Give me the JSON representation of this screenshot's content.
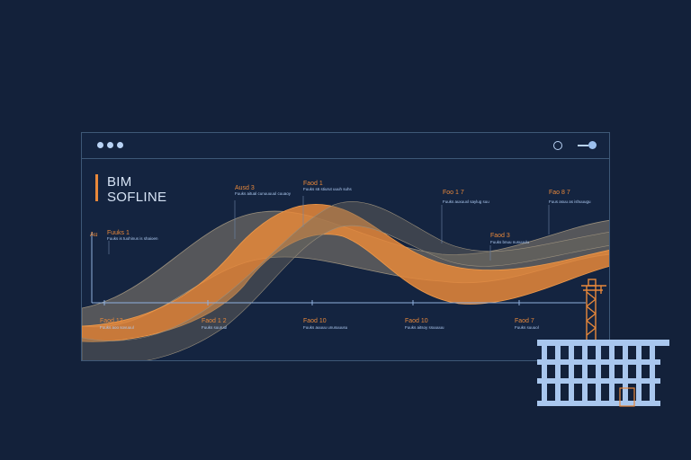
{
  "window": {
    "title_line1": "BIM",
    "title_line2": "SOFLINE",
    "controls": [
      "clock-icon",
      "minimize-icon",
      "dot-icon"
    ]
  },
  "chart_data": {
    "type": "area",
    "axis_label": "Au",
    "series": [
      {
        "color": "#e8883a"
      },
      {
        "color": "#8a8070"
      }
    ],
    "upper_labels": [
      {
        "title": "Fuuks 1",
        "caption": "Fuuks is tuohinus is shaioen"
      },
      {
        "title": "Ausd 3",
        "caption": "Fuuks aitual cunuuuuul cuuaoy"
      },
      {
        "title": "Faod 1",
        "caption": "Fuuks s6 stiurut uuuh suhs"
      },
      {
        "title": "Foo 1 7",
        "caption": "Fuuks auxuuxl saylug suu"
      },
      {
        "title": "Faod 3",
        "caption": "Fuuks bnuu nusuuulu"
      },
      {
        "title": "Fao 8 7",
        "caption": "Fuus asuu as ishuuugu"
      }
    ],
    "lower_labels": [
      {
        "title": "Faod 13",
        "caption": "Fuuks aoo sovuuul"
      },
      {
        "title": "Faod 1 2",
        "caption": "Fuuks suuruul"
      },
      {
        "title": "Faod 10",
        "caption": "Fuuks auuuu unusuuusu"
      },
      {
        "title": "Faod 10",
        "caption": "Fuuks aitsoy ssuuuuu"
      },
      {
        "title": "Faod 7",
        "caption": "Fuuks suuuol"
      }
    ]
  },
  "illustration": {
    "crane": "crane-icon",
    "building": "building-icon"
  }
}
